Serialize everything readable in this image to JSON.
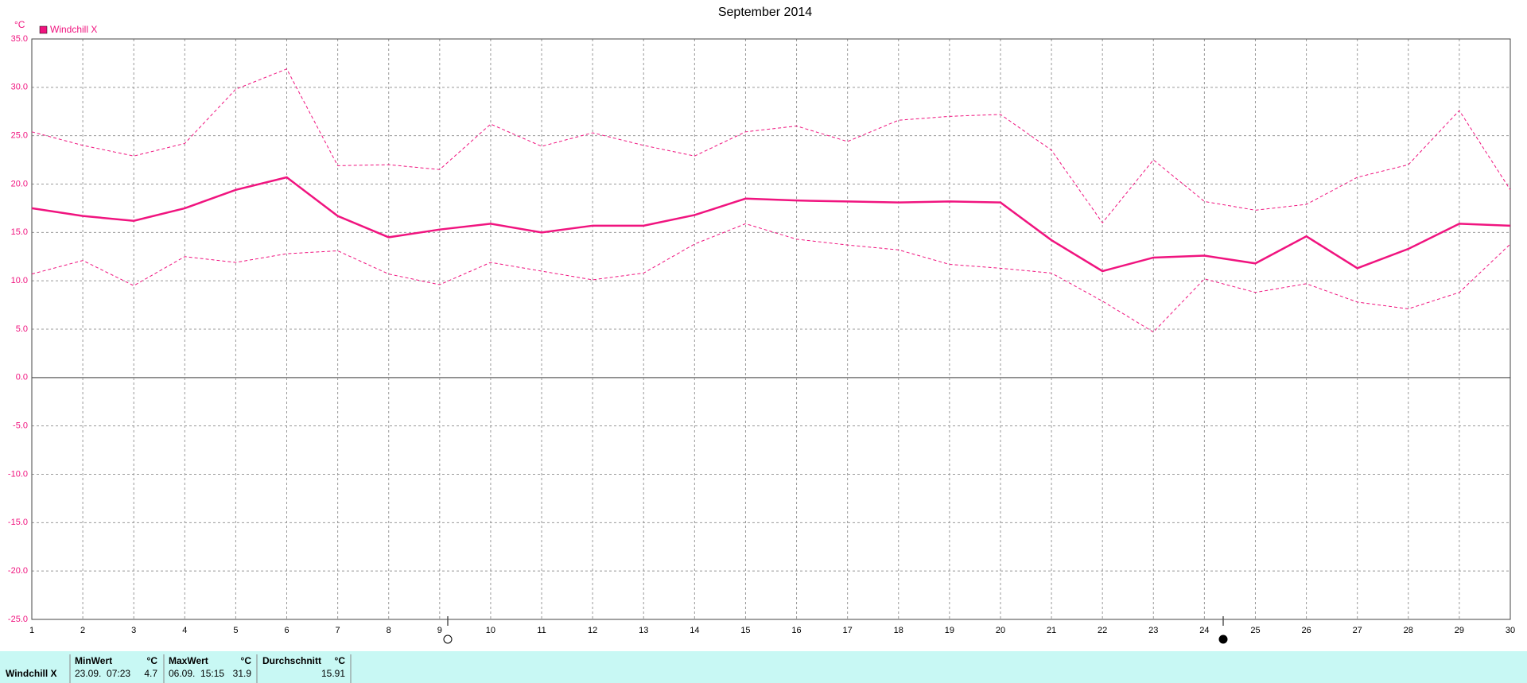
{
  "chart_data": {
    "type": "line",
    "title": "September 2014",
    "y_unit": "°C",
    "x": [
      1,
      2,
      3,
      4,
      5,
      6,
      7,
      8,
      9,
      10,
      11,
      12,
      13,
      14,
      15,
      16,
      17,
      18,
      19,
      20,
      21,
      22,
      23,
      24,
      25,
      26,
      27,
      28,
      29,
      30
    ],
    "xlim": [
      1,
      30
    ],
    "xticks": [
      1,
      2,
      3,
      4,
      5,
      6,
      7,
      8,
      9,
      10,
      11,
      12,
      13,
      14,
      15,
      16,
      17,
      18,
      19,
      20,
      21,
      22,
      23,
      24,
      25,
      26,
      27,
      28,
      29,
      30
    ],
    "ylim": [
      -25,
      35
    ],
    "yticks": [
      {
        "value": -25,
        "label": "-25.0"
      },
      {
        "value": -20,
        "label": "-20.0"
      },
      {
        "value": -15,
        "label": "-15.0"
      },
      {
        "value": -10,
        "label": "-10.0"
      },
      {
        "value": -5,
        "label": "-5.0"
      },
      {
        "value": 0,
        "label": "0.0"
      },
      {
        "value": 5,
        "label": "5.0"
      },
      {
        "value": 10,
        "label": "10.0"
      },
      {
        "value": 15,
        "label": "15.0"
      },
      {
        "value": 20,
        "label": "20.0"
      },
      {
        "value": 25,
        "label": "25.0"
      },
      {
        "value": 30,
        "label": "30.0"
      },
      {
        "value": 35,
        "label": "35.0"
      }
    ],
    "grid": true,
    "legend": "top-left",
    "series": [
      {
        "name": "Windchill X",
        "color": "#f0147f",
        "dashed": false,
        "values": [
          17.5,
          16.7,
          16.2,
          17.5,
          19.4,
          20.7,
          16.7,
          14.5,
          15.3,
          15.9,
          15.0,
          15.7,
          15.7,
          16.8,
          18.5,
          18.3,
          18.2,
          18.1,
          18.2,
          18.1,
          14.2,
          11.0,
          12.4,
          12.6,
          11.8,
          14.6,
          11.3,
          13.3,
          15.9,
          15.7
        ]
      },
      {
        "color": "#f0147f",
        "dashed": true,
        "values": [
          25.4,
          24.0,
          22.9,
          24.2,
          29.8,
          31.9,
          21.9,
          22.0,
          21.5,
          26.2,
          23.9,
          25.3,
          24.0,
          22.9,
          25.4,
          26.0,
          24.4,
          26.6,
          27.0,
          27.2,
          23.5,
          16.0,
          22.5,
          18.2,
          17.3,
          17.9,
          20.7,
          22.0,
          27.6,
          19.4
        ]
      },
      {
        "color": "#f0147f",
        "dashed": true,
        "values": [
          10.7,
          12.1,
          9.5,
          12.5,
          11.9,
          12.8,
          13.1,
          10.7,
          9.6,
          11.9,
          11.0,
          10.1,
          10.8,
          13.8,
          15.9,
          14.3,
          13.7,
          13.2,
          11.7,
          11.3,
          10.8,
          7.9,
          4.7,
          10.2,
          8.8,
          9.7,
          7.8,
          7.1,
          8.8,
          13.8
        ]
      }
    ]
  },
  "table": {
    "row_label": "Windchill X",
    "headers": [
      [
        "MinWert",
        "°C"
      ],
      [
        "MaxWert",
        "°C"
      ],
      [
        "Durchschnitt",
        "°C"
      ]
    ],
    "cells": [
      [
        "23.09.  07:23",
        "4.7"
      ],
      [
        "06.09.  15:15",
        "31.9"
      ],
      [
        "",
        "15.91"
      ]
    ]
  }
}
